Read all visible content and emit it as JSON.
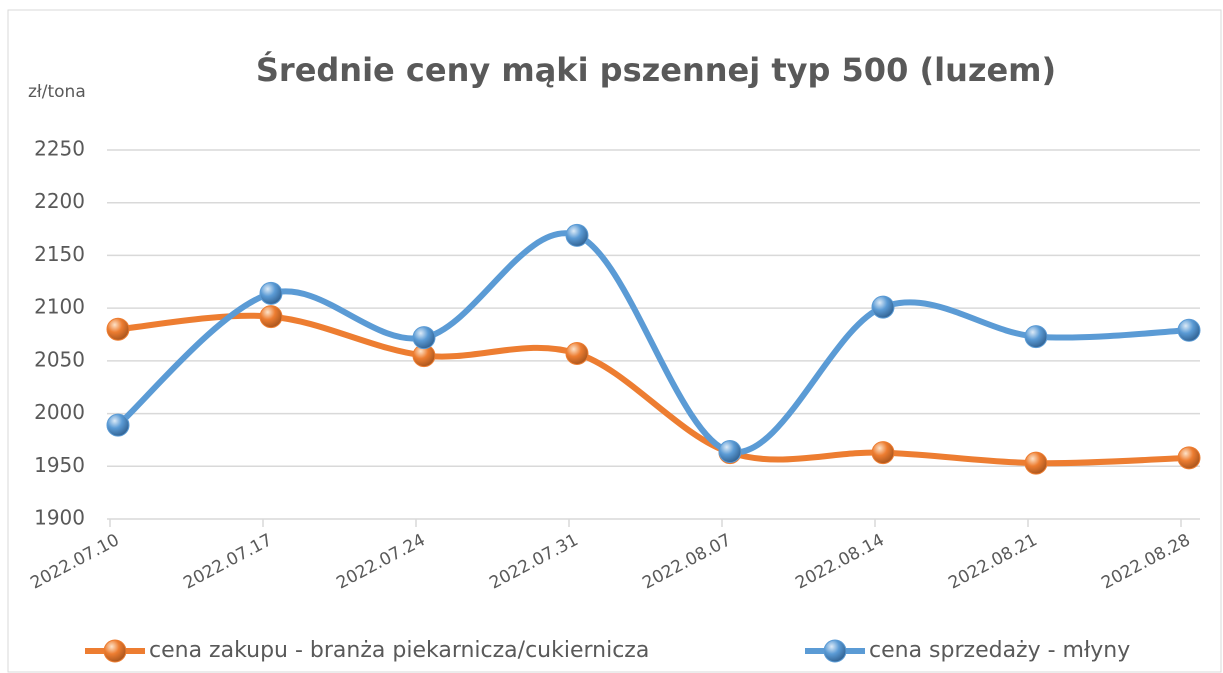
{
  "chart_data": {
    "type": "line",
    "title": "Średnie ceny mąki pszennej typ 500 (luzem)",
    "y_label": "zł/tona",
    "categories": [
      "2022.07.10",
      "2022.07.17",
      "2022.07.24",
      "2022.07.31",
      "2022.08.07",
      "2022.08.14",
      "2022.08.21",
      "2022.08.28"
    ],
    "series": [
      {
        "name": "cena zakupu - branża piekarnicza/cukiernicza",
        "color": "#ed7d31",
        "values": [
          2080,
          2092,
          2055,
          2057,
          1963,
          1963,
          1953,
          1958
        ]
      },
      {
        "name": "cena sprzedaży - młyny",
        "color": "#5b9bd5",
        "values": [
          1989,
          2114,
          2072,
          2169,
          1964,
          2101,
          2073,
          2079
        ]
      }
    ],
    "ylim": [
      1900,
      2250
    ],
    "yticks": [
      1900,
      1950,
      2000,
      2050,
      2100,
      2150,
      2200,
      2250
    ],
    "grid": true,
    "smooth": true,
    "legend": "bottom"
  }
}
